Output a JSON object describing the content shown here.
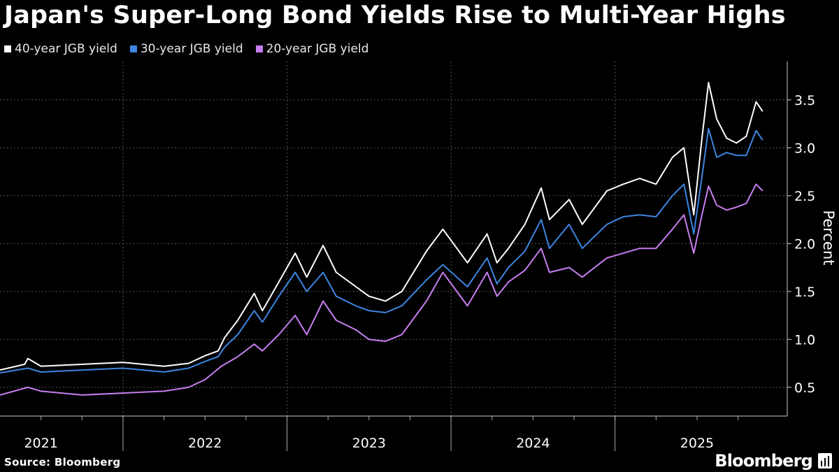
{
  "chart_data": {
    "type": "line",
    "title": "Japan's Super-Long Bond Yields Rise to Multi-Year Highs",
    "ylabel": "Percent",
    "xlabel": "",
    "ylim": [
      0.2,
      3.9
    ],
    "yticks": [
      "0.5",
      "1.0",
      "1.5",
      "2.0",
      "2.5",
      "3.0",
      "3.5"
    ],
    "ytick_values": [
      0.5,
      1.0,
      1.5,
      2.0,
      2.5,
      3.0,
      3.5
    ],
    "xlim": [
      2020.75,
      2025.55
    ],
    "xtick_labels": [
      "2021",
      "2022",
      "2023",
      "2024",
      "2025"
    ],
    "xtick_years": [
      2021,
      2022,
      2023,
      2024,
      2025
    ],
    "grid": true,
    "legend_position": "top-left",
    "series": [
      {
        "name": "40-year JGB yield",
        "color": "#ffffff",
        "x": [
          2020.75,
          2020.9,
          2020.92,
          2021.0,
          2021.25,
          2021.5,
          2021.75,
          2021.9,
          2022.0,
          2022.08,
          2022.12,
          2022.2,
          2022.3,
          2022.35,
          2022.45,
          2022.55,
          2022.62,
          2022.72,
          2022.8,
          2022.92,
          2023.0,
          2023.1,
          2023.2,
          2023.35,
          2023.45,
          2023.6,
          2023.72,
          2023.78,
          2023.85,
          2023.95,
          2024.05,
          2024.1,
          2024.22,
          2024.3,
          2024.45,
          2024.55,
          2024.65,
          2024.75,
          2024.85,
          2024.92,
          2024.98,
          2025.03,
          2025.07,
          2025.12,
          2025.18,
          2025.24,
          2025.3,
          2025.36,
          2025.4
        ],
        "values": [
          0.68,
          0.74,
          0.8,
          0.72,
          0.74,
          0.76,
          0.72,
          0.75,
          0.83,
          0.88,
          1.02,
          1.2,
          1.48,
          1.3,
          1.6,
          1.9,
          1.65,
          1.98,
          1.7,
          1.55,
          1.45,
          1.4,
          1.5,
          1.92,
          2.15,
          1.8,
          2.1,
          1.8,
          1.95,
          2.2,
          2.58,
          2.25,
          2.46,
          2.2,
          2.55,
          2.62,
          2.68,
          2.62,
          2.9,
          3.0,
          2.3,
          3.1,
          3.68,
          3.3,
          3.1,
          3.05,
          3.12,
          3.48,
          3.38
        ]
      },
      {
        "name": "30-year JGB yield",
        "color": "#3d85e0",
        "x": [
          2020.75,
          2020.92,
          2021.0,
          2021.25,
          2021.5,
          2021.75,
          2021.9,
          2022.0,
          2022.08,
          2022.12,
          2022.2,
          2022.3,
          2022.35,
          2022.45,
          2022.55,
          2022.62,
          2022.72,
          2022.8,
          2022.92,
          2023.0,
          2023.1,
          2023.2,
          2023.35,
          2023.45,
          2023.6,
          2023.72,
          2023.78,
          2023.85,
          2023.95,
          2024.05,
          2024.1,
          2024.22,
          2024.3,
          2024.45,
          2024.55,
          2024.65,
          2024.75,
          2024.85,
          2024.92,
          2024.98,
          2025.03,
          2025.07,
          2025.12,
          2025.18,
          2025.24,
          2025.3,
          2025.36,
          2025.4
        ],
        "values": [
          0.65,
          0.7,
          0.66,
          0.68,
          0.7,
          0.66,
          0.7,
          0.77,
          0.82,
          0.92,
          1.05,
          1.3,
          1.18,
          1.45,
          1.7,
          1.5,
          1.7,
          1.45,
          1.35,
          1.3,
          1.28,
          1.35,
          1.62,
          1.78,
          1.55,
          1.85,
          1.58,
          1.75,
          1.92,
          2.25,
          1.95,
          2.2,
          1.95,
          2.2,
          2.28,
          2.3,
          2.28,
          2.5,
          2.62,
          2.1,
          2.7,
          3.2,
          2.9,
          2.95,
          2.92,
          2.92,
          3.18,
          3.08
        ]
      },
      {
        "name": "20-year JGB yield",
        "color": "#c77ef0",
        "x": [
          2020.75,
          2020.92,
          2021.0,
          2021.25,
          2021.5,
          2021.75,
          2021.9,
          2022.0,
          2022.1,
          2022.2,
          2022.3,
          2022.35,
          2022.45,
          2022.55,
          2022.62,
          2022.72,
          2022.8,
          2022.92,
          2023.0,
          2023.1,
          2023.2,
          2023.35,
          2023.45,
          2023.6,
          2023.72,
          2023.78,
          2023.85,
          2023.95,
          2024.05,
          2024.1,
          2024.22,
          2024.3,
          2024.45,
          2024.55,
          2024.65,
          2024.75,
          2024.85,
          2024.92,
          2024.98,
          2025.03,
          2025.07,
          2025.12,
          2025.18,
          2025.24,
          2025.3,
          2025.36,
          2025.4
        ],
        "values": [
          0.42,
          0.5,
          0.46,
          0.42,
          0.44,
          0.46,
          0.5,
          0.58,
          0.72,
          0.82,
          0.95,
          0.88,
          1.05,
          1.25,
          1.05,
          1.4,
          1.2,
          1.1,
          1.0,
          0.98,
          1.05,
          1.4,
          1.7,
          1.35,
          1.7,
          1.45,
          1.6,
          1.72,
          1.95,
          1.7,
          1.75,
          1.65,
          1.85,
          1.9,
          1.95,
          1.95,
          2.15,
          2.3,
          1.9,
          2.3,
          2.6,
          2.4,
          2.35,
          2.38,
          2.42,
          2.62,
          2.55
        ]
      }
    ]
  },
  "source": "Source: Bloomberg",
  "brand": "Bloomberg"
}
